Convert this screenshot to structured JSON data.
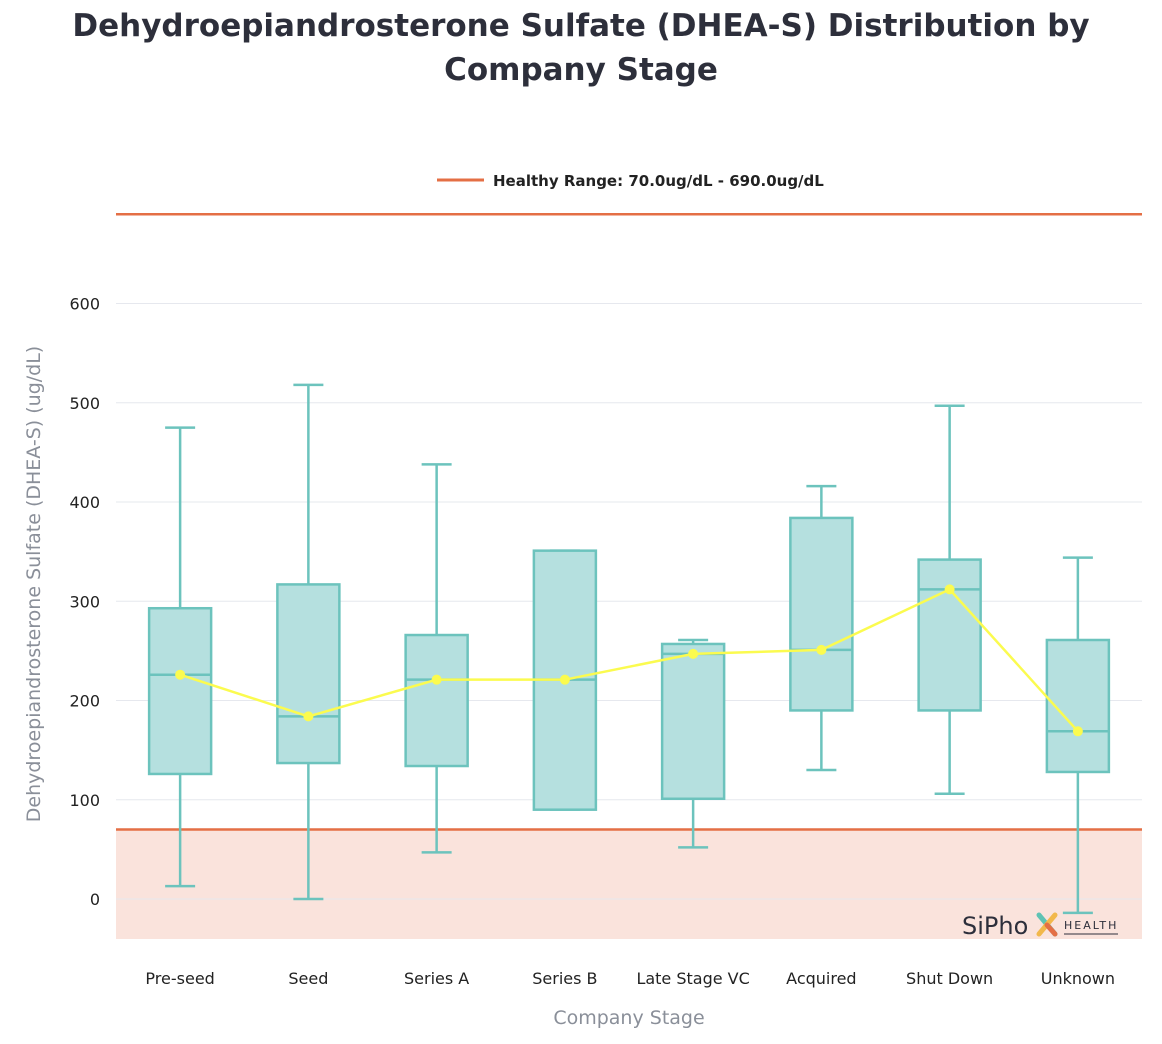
{
  "chart_data": {
    "type": "box",
    "title": "Dehydroepiandrosterone Sulfate (DHEA-S) Distribution by Company Stage",
    "xlabel": "Company Stage",
    "ylabel": "Dehydroepiandrosterone Sulfate (DHEA-S) (ug/dL)",
    "ylim": [
      -40,
      700
    ],
    "yticks": [
      0,
      100,
      200,
      300,
      400,
      500,
      600
    ],
    "categories": [
      "Pre-seed",
      "Seed",
      "Series A",
      "Series B",
      "Late Stage VC",
      "Acquired",
      "Shut Down",
      "Unknown"
    ],
    "boxes": [
      {
        "min": 13,
        "q1": 126,
        "median": 226,
        "q3": 293,
        "max": 475
      },
      {
        "min": 0,
        "q1": 137,
        "median": 184,
        "q3": 317,
        "max": 518
      },
      {
        "min": 47,
        "q1": 134,
        "median": 221,
        "q3": 266,
        "max": 438
      },
      {
        "min": 90,
        "q1": 90,
        "median": 221,
        "q3": 351,
        "max": 351
      },
      {
        "min": 52,
        "q1": 101,
        "median": 247,
        "q3": 257,
        "max": 261
      },
      {
        "min": 130,
        "q1": 190,
        "median": 251,
        "q3": 384,
        "max": 416
      },
      {
        "min": 106,
        "q1": 190,
        "median": 312,
        "q3": 342,
        "max": 497
      },
      {
        "min": -14,
        "q1": 128,
        "median": 169,
        "q3": 261,
        "max": 344
      }
    ],
    "median_line": [
      226,
      184,
      221,
      221,
      247,
      251,
      312,
      169
    ],
    "healthy_range": {
      "low": 70,
      "high": 690,
      "label": "Healthy Range: 70.0ug/dL - 690.0ug/dL"
    },
    "legend": "top-center",
    "grid": true,
    "colors": {
      "box_fill": "#b5e0df",
      "box_stroke": "#6cc3bd",
      "median_line": "#fbfb4f",
      "range_line": "#e46f45",
      "below_range_fill": "#fae3dc",
      "grid": "#e6e8ee"
    }
  },
  "logo": {
    "main": "SiPho",
    "sub": "HEALTH"
  }
}
